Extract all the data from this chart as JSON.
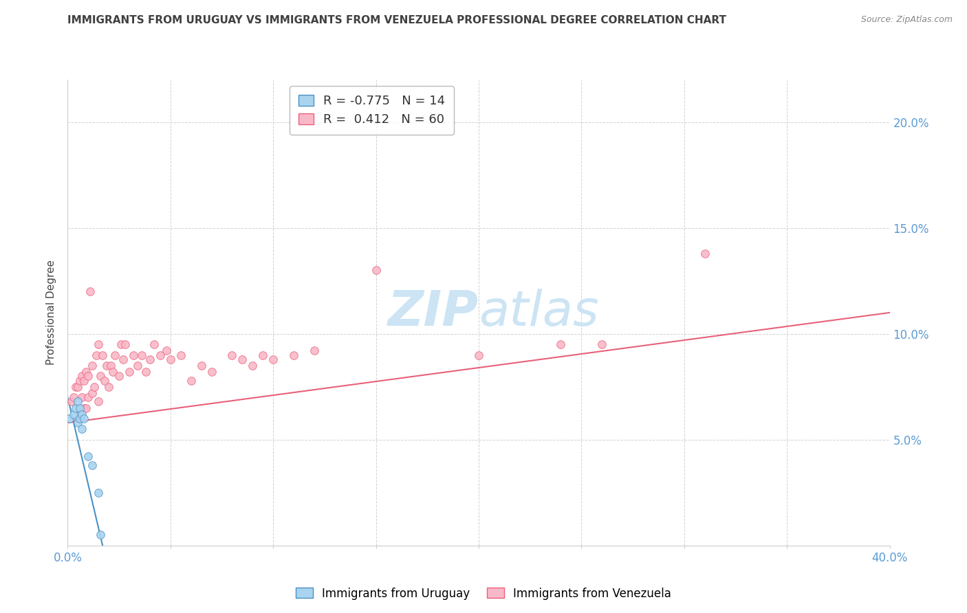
{
  "title": "IMMIGRANTS FROM URUGUAY VS IMMIGRANTS FROM VENEZUELA PROFESSIONAL DEGREE CORRELATION CHART",
  "source": "Source: ZipAtlas.com",
  "ylabel": "Professional Degree",
  "xlim": [
    0.0,
    0.4
  ],
  "ylim": [
    0.0,
    0.22
  ],
  "xticks": [
    0.0,
    0.05,
    0.1,
    0.15,
    0.2,
    0.25,
    0.3,
    0.35,
    0.4
  ],
  "yticks": [
    0.0,
    0.05,
    0.1,
    0.15,
    0.2
  ],
  "uruguay_R": -0.775,
  "uruguay_N": 14,
  "venezuela_R": 0.412,
  "venezuela_N": 60,
  "uruguay_color": "#a8d4f0",
  "venezuela_color": "#f9b8c8",
  "uruguay_line_color": "#4a90c4",
  "venezuela_line_color": "#e8607a",
  "watermark_color": "#cce4f4",
  "background_color": "#ffffff",
  "grid_color": "#cccccc",
  "tick_color": "#5b9bd5",
  "title_color": "#404040",
  "source_color": "#888888",
  "uruguay_x": [
    0.001,
    0.003,
    0.004,
    0.005,
    0.005,
    0.006,
    0.006,
    0.007,
    0.007,
    0.008,
    0.01,
    0.012,
    0.015,
    0.016
  ],
  "uruguay_y": [
    0.06,
    0.062,
    0.065,
    0.068,
    0.058,
    0.065,
    0.06,
    0.062,
    0.055,
    0.06,
    0.042,
    0.038,
    0.025,
    0.005
  ],
  "venezuela_x": [
    0.002,
    0.003,
    0.004,
    0.005,
    0.005,
    0.006,
    0.006,
    0.007,
    0.007,
    0.008,
    0.008,
    0.009,
    0.009,
    0.01,
    0.01,
    0.011,
    0.012,
    0.012,
    0.013,
    0.014,
    0.015,
    0.015,
    0.016,
    0.017,
    0.018,
    0.019,
    0.02,
    0.021,
    0.022,
    0.023,
    0.025,
    0.026,
    0.027,
    0.028,
    0.03,
    0.032,
    0.034,
    0.036,
    0.038,
    0.04,
    0.042,
    0.045,
    0.048,
    0.05,
    0.055,
    0.06,
    0.065,
    0.07,
    0.08,
    0.085,
    0.09,
    0.095,
    0.1,
    0.11,
    0.12,
    0.15,
    0.2,
    0.24,
    0.26,
    0.31
  ],
  "venezuela_y": [
    0.068,
    0.07,
    0.075,
    0.06,
    0.075,
    0.062,
    0.078,
    0.07,
    0.08,
    0.065,
    0.078,
    0.065,
    0.082,
    0.07,
    0.08,
    0.12,
    0.072,
    0.085,
    0.075,
    0.09,
    0.068,
    0.095,
    0.08,
    0.09,
    0.078,
    0.085,
    0.075,
    0.085,
    0.082,
    0.09,
    0.08,
    0.095,
    0.088,
    0.095,
    0.082,
    0.09,
    0.085,
    0.09,
    0.082,
    0.088,
    0.095,
    0.09,
    0.092,
    0.088,
    0.09,
    0.078,
    0.085,
    0.082,
    0.09,
    0.088,
    0.085,
    0.09,
    0.088,
    0.09,
    0.092,
    0.13,
    0.09,
    0.095,
    0.095,
    0.138
  ],
  "uru_trend_x": [
    0.0,
    0.017
  ],
  "uru_trend_y": [
    0.07,
    0.0
  ],
  "ven_trend_x": [
    0.0,
    0.4
  ],
  "ven_trend_y": [
    0.058,
    0.11
  ]
}
